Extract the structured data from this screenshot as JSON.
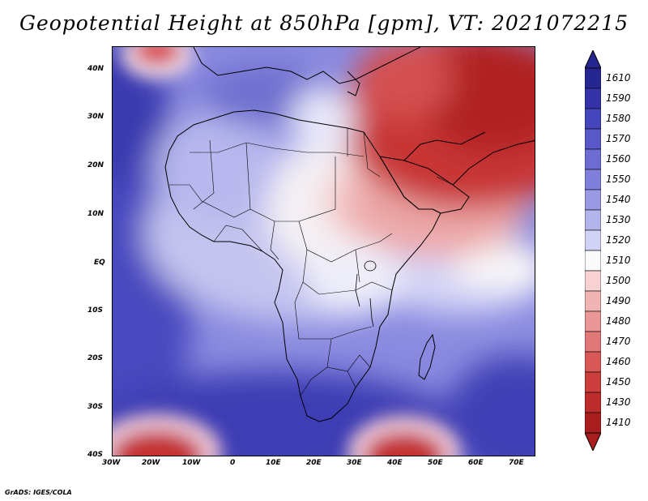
{
  "title": "Geopotential Height at 850hPa [gpm], VT: 2021072215",
  "credit": "GrADS: IGES/COLA",
  "map": {
    "lon_range": [
      -30,
      75
    ],
    "lat_range": [
      -40,
      45
    ],
    "lon_ticks": [
      "30W",
      "20W",
      "10W",
      "0",
      "10E",
      "20E",
      "30E",
      "40E",
      "50E",
      "60E",
      "70E"
    ],
    "lat_ticks": [
      "40N",
      "30N",
      "20N",
      "10N",
      "EQ",
      "10S",
      "20S",
      "30S",
      "40S"
    ]
  },
  "colorbar": {
    "labels": [
      "1610",
      "1590",
      "1580",
      "1570",
      "1560",
      "1550",
      "1540",
      "1530",
      "1520",
      "1510",
      "1500",
      "1490",
      "1480",
      "1470",
      "1460",
      "1450",
      "1430",
      "1410"
    ],
    "colors": [
      "#262691",
      "#3434a8",
      "#4545bc",
      "#5858c8",
      "#6c6cd2",
      "#8080dc",
      "#9a9ae4",
      "#b4b4ec",
      "#d2d2f6",
      "#fafafa",
      "#f8d2d2",
      "#f0b4b4",
      "#e89696",
      "#e07878",
      "#d85858",
      "#cc3e3e",
      "#bc2c2c",
      "#a81e1e"
    ]
  },
  "legend_icons": [
    "colorbar-top-arrow",
    "colorbar-bottom-arrow"
  ]
}
